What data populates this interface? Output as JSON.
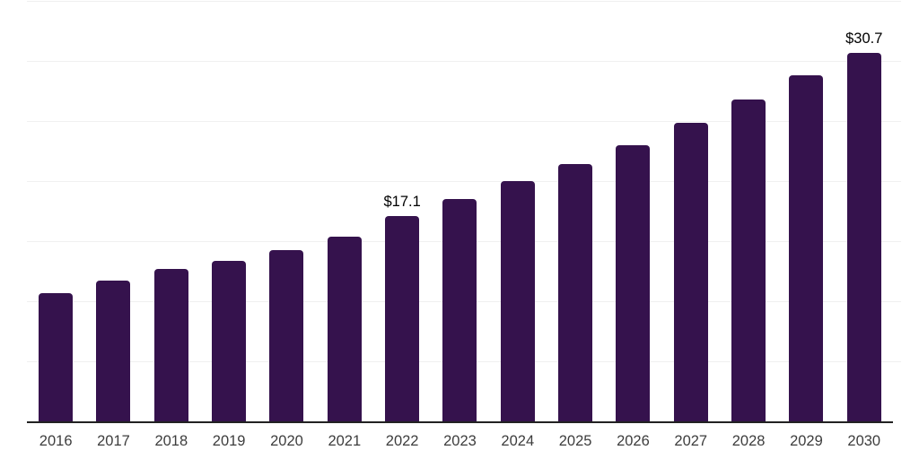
{
  "chart_data": {
    "type": "bar",
    "title": "",
    "xlabel": "",
    "ylabel": "",
    "categories": [
      "2016",
      "2017",
      "2018",
      "2019",
      "2020",
      "2021",
      "2022",
      "2023",
      "2024",
      "2025",
      "2026",
      "2027",
      "2028",
      "2029",
      "2030"
    ],
    "values": [
      10.7,
      11.7,
      12.7,
      13.4,
      14.3,
      15.4,
      17.1,
      18.5,
      20.0,
      21.4,
      23.0,
      24.9,
      26.8,
      28.8,
      30.7
    ],
    "value_prefix": "$",
    "annotations": [
      {
        "category": "2022",
        "label": "$17.1"
      },
      {
        "category": "2030",
        "label": "$30.7"
      }
    ],
    "ylim": [
      0,
      35.1
    ],
    "grid_step": 5,
    "grid": true,
    "legend": false,
    "y_tick_labels_visible": false,
    "colors": {
      "bar": "#35124D",
      "axis": "#222222",
      "gridline": "#f0f0f0",
      "value_label": "#000000",
      "tick_label": "#3d3d3d",
      "background": "#ffffff"
    }
  }
}
